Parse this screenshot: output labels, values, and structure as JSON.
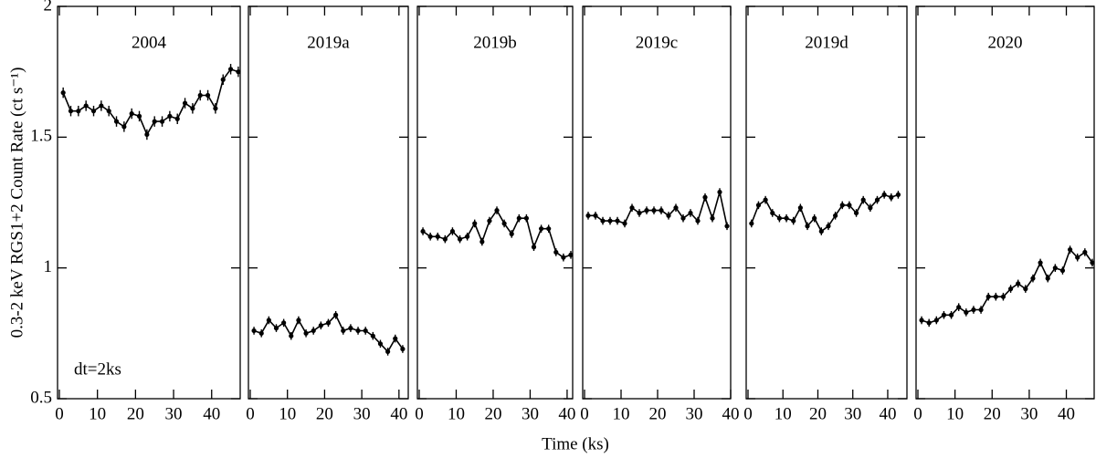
{
  "chart_data": [
    {
      "type": "line",
      "title": "2004",
      "annotation": "dt=2ks",
      "color": "#000000",
      "yerr": 0.02,
      "x": [
        1,
        3,
        5,
        7,
        9,
        11,
        13,
        15,
        17,
        19,
        21,
        23,
        25,
        27,
        29,
        31,
        33,
        35,
        37,
        39,
        41,
        43,
        45,
        47
      ],
      "values": [
        1.67,
        1.6,
        1.6,
        1.62,
        1.6,
        1.62,
        1.6,
        1.56,
        1.54,
        1.59,
        1.58,
        1.51,
        1.56,
        1.56,
        1.58,
        1.57,
        1.63,
        1.61,
        1.66,
        1.66,
        1.61,
        1.72,
        1.76,
        1.75
      ],
      "xlim": [
        0,
        47.5
      ],
      "xticks": [
        0,
        10,
        20,
        30,
        40
      ],
      "ylim": [
        0.5,
        2
      ],
      "yticks": [
        0.5,
        1,
        1.5,
        2
      ]
    },
    {
      "type": "line",
      "title": "2019a",
      "color": "#000000",
      "yerr": 0.015,
      "x": [
        1,
        3,
        5,
        7,
        9,
        11,
        13,
        15,
        17,
        19,
        21,
        23,
        25,
        27,
        29,
        31,
        33,
        35,
        37,
        39,
        41
      ],
      "values": [
        0.76,
        0.75,
        0.8,
        0.77,
        0.79,
        0.74,
        0.8,
        0.75,
        0.76,
        0.78,
        0.79,
        0.82,
        0.76,
        0.77,
        0.76,
        0.76,
        0.74,
        0.71,
        0.68,
        0.73,
        0.69
      ],
      "xlim": [
        0,
        42.5
      ],
      "xticks": [
        0,
        10,
        20,
        30,
        40
      ],
      "ylim": [
        0.5,
        2
      ],
      "yticks": [
        0.5,
        1,
        1.5,
        2
      ]
    },
    {
      "type": "line",
      "title": "2019b",
      "color": "#000000",
      "yerr": 0.015,
      "x": [
        1,
        3,
        5,
        7,
        9,
        11,
        13,
        15,
        17,
        19,
        21,
        23,
        25,
        27,
        29,
        31,
        33,
        35,
        37,
        39,
        41
      ],
      "values": [
        1.14,
        1.12,
        1.12,
        1.11,
        1.14,
        1.11,
        1.12,
        1.17,
        1.1,
        1.18,
        1.22,
        1.17,
        1.13,
        1.19,
        1.19,
        1.08,
        1.15,
        1.15,
        1.06,
        1.04,
        1.05
      ],
      "xlim": [
        0,
        41.5
      ],
      "xticks": [
        0,
        10,
        20,
        30,
        40
      ],
      "ylim": [
        0.5,
        2
      ],
      "yticks": [
        0.5,
        1,
        1.5,
        2
      ]
    },
    {
      "type": "line",
      "title": "2019c",
      "color": "#000000",
      "yerr": 0.015,
      "x": [
        1,
        3,
        5,
        7,
        9,
        11,
        13,
        15,
        17,
        19,
        21,
        23,
        25,
        27,
        29,
        31,
        33,
        35,
        37,
        39
      ],
      "values": [
        1.2,
        1.2,
        1.18,
        1.18,
        1.18,
        1.17,
        1.23,
        1.21,
        1.22,
        1.22,
        1.22,
        1.2,
        1.23,
        1.19,
        1.21,
        1.18,
        1.27,
        1.19,
        1.29,
        1.16
      ],
      "xlim": [
        0,
        40
      ],
      "xticks": [
        0,
        10,
        20,
        30,
        40
      ],
      "ylim": [
        0.5,
        2
      ],
      "yticks": [
        0.5,
        1,
        1.5,
        2
      ]
    },
    {
      "type": "line",
      "title": "2019d",
      "color": "#000000",
      "yerr": 0.015,
      "x": [
        1,
        3,
        5,
        7,
        9,
        11,
        13,
        15,
        17,
        19,
        21,
        23,
        25,
        27,
        29,
        31,
        33,
        35,
        37,
        39,
        41,
        43
      ],
      "values": [
        1.17,
        1.24,
        1.26,
        1.21,
        1.19,
        1.19,
        1.18,
        1.23,
        1.16,
        1.19,
        1.14,
        1.16,
        1.2,
        1.24,
        1.24,
        1.21,
        1.26,
        1.23,
        1.26,
        1.28,
        1.27,
        1.28
      ],
      "xlim": [
        0,
        45.5
      ],
      "xticks": [
        0,
        10,
        20,
        30,
        40
      ],
      "ylim": [
        0.5,
        2
      ],
      "yticks": [
        0.5,
        1,
        1.5,
        2
      ]
    },
    {
      "type": "line",
      "title": "2020",
      "color": "#000000",
      "yerr": 0.015,
      "x": [
        1,
        3,
        5,
        7,
        9,
        11,
        13,
        15,
        17,
        19,
        21,
        23,
        25,
        27,
        29,
        31,
        33,
        35,
        37,
        39,
        41,
        43,
        45,
        47
      ],
      "values": [
        0.8,
        0.79,
        0.8,
        0.82,
        0.82,
        0.85,
        0.83,
        0.84,
        0.84,
        0.89,
        0.89,
        0.89,
        0.92,
        0.94,
        0.92,
        0.96,
        1.02,
        0.96,
        1.0,
        0.99,
        1.07,
        1.04,
        1.06,
        1.02
      ],
      "xlim": [
        0,
        47.5
      ],
      "xticks": [
        0,
        10,
        20,
        30,
        40
      ],
      "ylim": [
        0.5,
        2
      ],
      "yticks": [
        0.5,
        1,
        1.5,
        2
      ]
    }
  ],
  "axis_labels": {
    "x": "Time (ks)",
    "y": "0.3-2 keV RGS1+2 Count Rate (ct s⁻¹)"
  }
}
